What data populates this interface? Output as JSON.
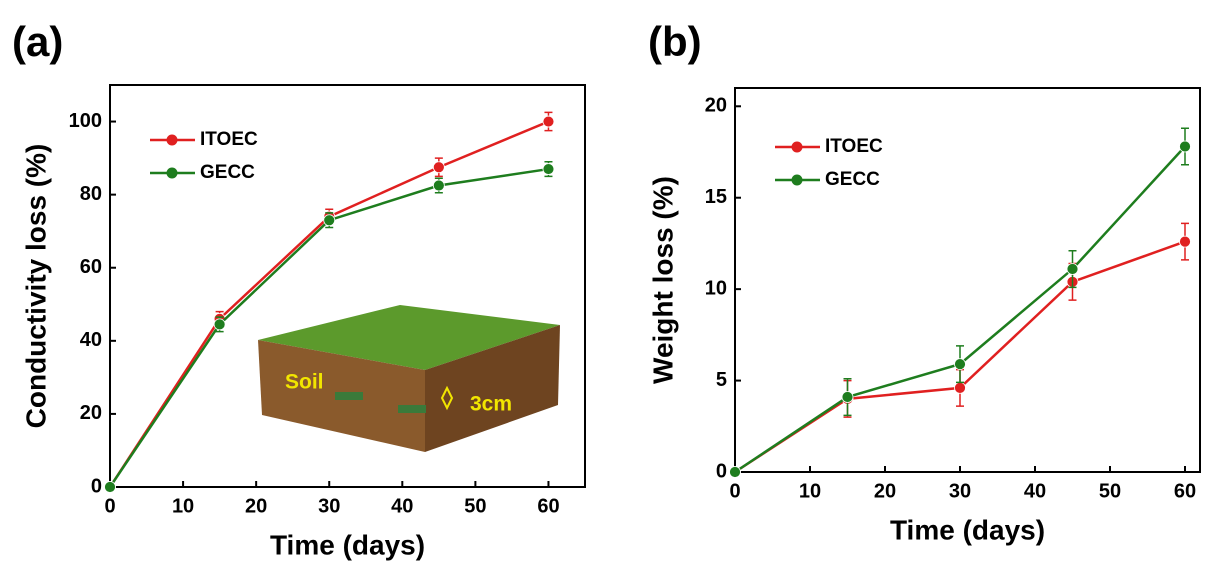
{
  "chart_data": [
    {
      "type": "line",
      "title": "(a)",
      "xlabel": "Time (days)",
      "ylabel": "Conductivity loss (%)",
      "x": [
        0,
        15,
        30,
        45,
        60
      ],
      "series": [
        {
          "name": "ITOEC",
          "color": "#e02020",
          "values": [
            0,
            46,
            74,
            87.5,
            100
          ],
          "errors": [
            0,
            2,
            2,
            2.5,
            2.5
          ]
        },
        {
          "name": "GECC",
          "color": "#1e7d1e",
          "values": [
            0,
            44.5,
            73,
            82.5,
            87
          ],
          "errors": [
            0,
            2,
            2,
            2,
            2
          ]
        }
      ],
      "xlim": [
        0,
        65
      ],
      "xticks": [
        0,
        10,
        20,
        30,
        40,
        50,
        60
      ],
      "ylim": [
        0,
        110
      ],
      "yticks": [
        0,
        20,
        40,
        60,
        80,
        100
      ],
      "legend": "upper left",
      "annotations": [
        "Soil",
        "3cm"
      ]
    },
    {
      "type": "line",
      "title": "(b)",
      "xlabel": "Time (days)",
      "ylabel": "Weight loss (%)",
      "x": [
        0,
        15,
        30,
        45,
        60
      ],
      "series": [
        {
          "name": "ITOEC",
          "color": "#e02020",
          "values": [
            0,
            4,
            4.6,
            10.4,
            12.6
          ],
          "errors": [
            0,
            1,
            1,
            1,
            1
          ]
        },
        {
          "name": "GECC",
          "color": "#1e7d1e",
          "values": [
            0,
            4.1,
            5.9,
            11.1,
            17.8
          ],
          "errors": [
            0,
            1,
            1,
            1,
            1
          ]
        }
      ],
      "xlim": [
        0,
        62
      ],
      "xticks": [
        0,
        10,
        20,
        30,
        40,
        50,
        60
      ],
      "ylim": [
        0,
        21
      ],
      "yticks": [
        0,
        5,
        10,
        15,
        20
      ],
      "legend": "upper left"
    }
  ]
}
